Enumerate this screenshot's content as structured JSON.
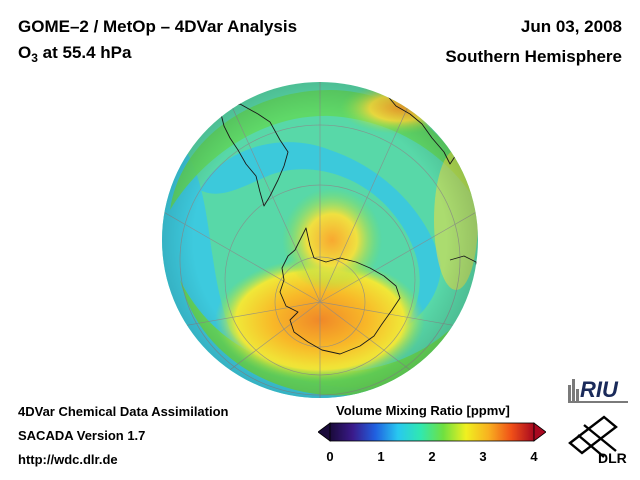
{
  "header": {
    "title_line1": "GOME–2 / MetOp – 4DVar Analysis",
    "title_species": "O",
    "title_subscript": "3",
    "title_level": " at 55.4 hPa",
    "date": "Jun 03, 2008",
    "hemisphere": "Southern Hemisphere"
  },
  "footer": {
    "line1": "4DVar Chemical Data Assimilation",
    "line2": "SACADA Version 1.7",
    "line3": "http://wdc.dlr.de"
  },
  "colorbar": {
    "title": "Volume Mixing Ratio [ppmv]",
    "min": 0,
    "max": 4,
    "ticks": [
      "0",
      "1",
      "2",
      "3",
      "4"
    ],
    "stops": [
      "#1a0a3a",
      "#3a1a8a",
      "#2060e0",
      "#28c8f0",
      "#30e8b0",
      "#70e040",
      "#f0f020",
      "#f8b020",
      "#f05018",
      "#a80820"
    ]
  },
  "logos": {
    "riu": "RIU",
    "dlr": "DLR"
  },
  "map": {
    "projection": "orthographic",
    "center": "South Pole",
    "colors": {
      "ocean_low": "#28c8e8",
      "mid": "#40e0a0",
      "green": "#60d840",
      "yellow": "#f0f020",
      "orange": "#f8a028",
      "red": "#f06020"
    }
  }
}
